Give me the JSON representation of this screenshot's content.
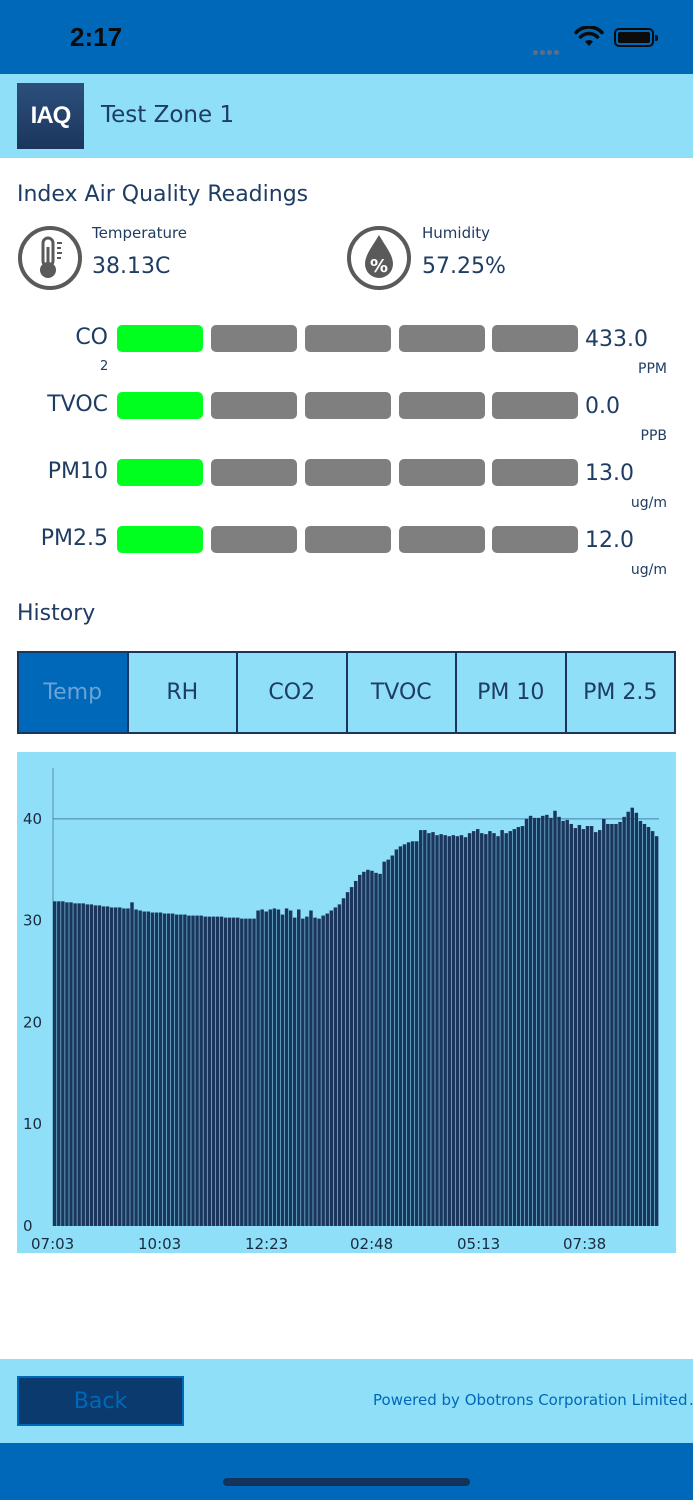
{
  "status": {
    "time": "2:17"
  },
  "header": {
    "logo_text": "IAQ",
    "zone_title": "Test Zone 1"
  },
  "readings": {
    "title": "Index Air Quality Readings",
    "temperature": {
      "label": "Temperature",
      "value": "38.13C",
      "icon": "thermometer-icon"
    },
    "humidity": {
      "label": "Humidity",
      "value": "57.25%",
      "icon": "humidity-drop-icon"
    }
  },
  "gauges": [
    {
      "name": "CO",
      "sub": "2",
      "value": "433.0",
      "unit": "PPM",
      "level": 1,
      "levels": 5
    },
    {
      "name": "TVOC",
      "sub": "",
      "value": "0.0",
      "unit": "PPB",
      "level": 1,
      "levels": 5
    },
    {
      "name": "PM10",
      "sub": "",
      "value": "13.0",
      "unit": "ug/m",
      "level": 1,
      "levels": 5
    },
    {
      "name": "PM2.5",
      "sub": "",
      "value": "12.0",
      "unit": "ug/m",
      "level": 1,
      "levels": 5
    }
  ],
  "colors": {
    "gauge_on": "#00ff1f",
    "gauge_off": "#7f7f7f",
    "bar": "#1b365d",
    "chart_bg": "#8edff7"
  },
  "history": {
    "title": "History",
    "tabs": [
      {
        "label": "Temp",
        "active": true
      },
      {
        "label": "RH",
        "active": false
      },
      {
        "label": "CO2",
        "active": false
      },
      {
        "label": "TVOC",
        "active": false
      },
      {
        "label": "PM 10",
        "active": false
      },
      {
        "label": "PM 2.5",
        "active": false
      }
    ]
  },
  "chart_data": {
    "type": "bar",
    "xlabel": "",
    "ylabel": "",
    "ylim": [
      0,
      45
    ],
    "yticks": [
      0,
      10,
      20,
      30,
      40
    ],
    "xtick_labels": [
      "07:03",
      "10:03",
      "12:23",
      "02:48",
      "05:13",
      "07:38"
    ],
    "grid": "horizontal at 40",
    "values": [
      31.9,
      31.9,
      31.9,
      31.8,
      31.8,
      31.7,
      31.7,
      31.7,
      31.6,
      31.6,
      31.5,
      31.5,
      31.4,
      31.4,
      31.3,
      31.3,
      31.3,
      31.2,
      31.2,
      31.8,
      31.1,
      31.0,
      30.9,
      30.9,
      30.8,
      30.8,
      30.8,
      30.7,
      30.7,
      30.7,
      30.6,
      30.6,
      30.6,
      30.5,
      30.5,
      30.5,
      30.5,
      30.4,
      30.4,
      30.4,
      30.4,
      30.4,
      30.3,
      30.3,
      30.3,
      30.3,
      30.2,
      30.2,
      30.2,
      30.2,
      31.0,
      31.1,
      30.9,
      31.1,
      31.2,
      31.1,
      30.6,
      31.2,
      31.0,
      30.3,
      31.1,
      30.2,
      30.4,
      31.0,
      30.3,
      30.2,
      30.5,
      30.7,
      31.0,
      31.3,
      31.6,
      32.2,
      32.8,
      33.3,
      33.9,
      34.5,
      34.8,
      35.0,
      34.9,
      34.7,
      34.6,
      35.8,
      36.0,
      36.4,
      37.0,
      37.3,
      37.5,
      37.7,
      37.8,
      37.8,
      38.9,
      38.9,
      38.6,
      38.7,
      38.4,
      38.5,
      38.4,
      38.3,
      38.4,
      38.3,
      38.4,
      38.2,
      38.6,
      38.8,
      39.0,
      38.6,
      38.5,
      38.8,
      38.6,
      38.3,
      38.9,
      38.6,
      38.8,
      39.0,
      39.2,
      39.3,
      40.0,
      40.3,
      40.1,
      40.1,
      40.3,
      40.4,
      40.1,
      40.8,
      40.2,
      39.8,
      39.9,
      39.5,
      39.1,
      39.4,
      39.0,
      39.3,
      39.3,
      38.7,
      38.9,
      40.0,
      39.5,
      39.5,
      39.5,
      39.7,
      40.2,
      40.7,
      41.1,
      40.6,
      39.8,
      39.5,
      39.2,
      38.8,
      38.3
    ]
  },
  "footer": {
    "back_label": "Back",
    "powered_by": "Powered by Obotrons Corporation Limited",
    "trailing": "."
  }
}
